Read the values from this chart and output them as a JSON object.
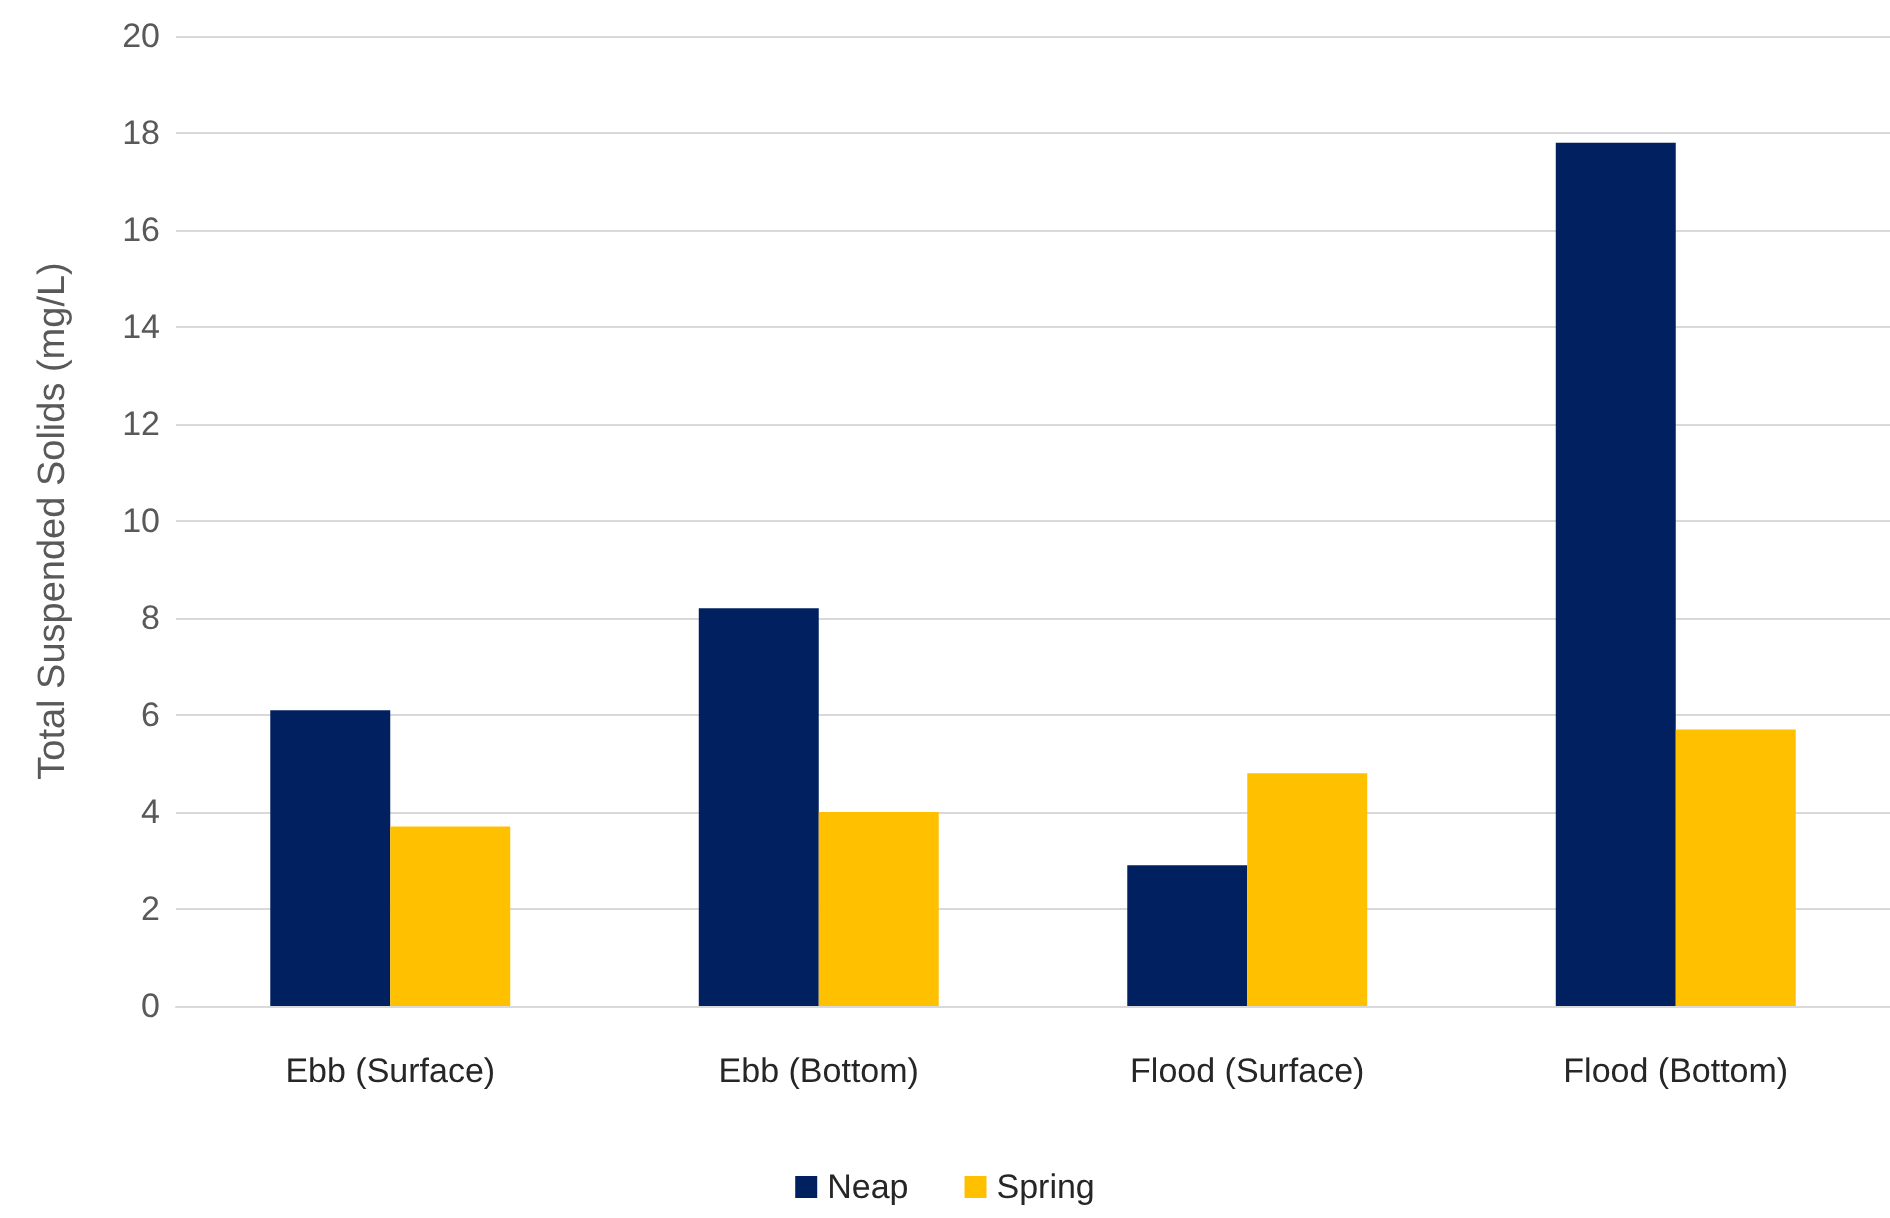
{
  "chart_data": {
    "type": "bar",
    "ylabel": "Total Suspended Solids (mg/L)",
    "categories": [
      "Ebb (Surface)",
      "Ebb (Bottom)",
      "Flood (Surface)",
      "Flood (Bottom)"
    ],
    "series": [
      {
        "name": "Neap",
        "color": "#002060",
        "values": [
          6.1,
          8.2,
          2.9,
          17.8
        ]
      },
      {
        "name": "Spring",
        "color": "#ffc000",
        "values": [
          3.7,
          4.0,
          4.8,
          5.7
        ]
      }
    ],
    "ylim": [
      0,
      20
    ],
    "yticks": [
      0,
      2,
      4,
      6,
      8,
      10,
      12,
      14,
      16,
      18,
      20
    ],
    "grid": "y",
    "legend": "bottom"
  }
}
